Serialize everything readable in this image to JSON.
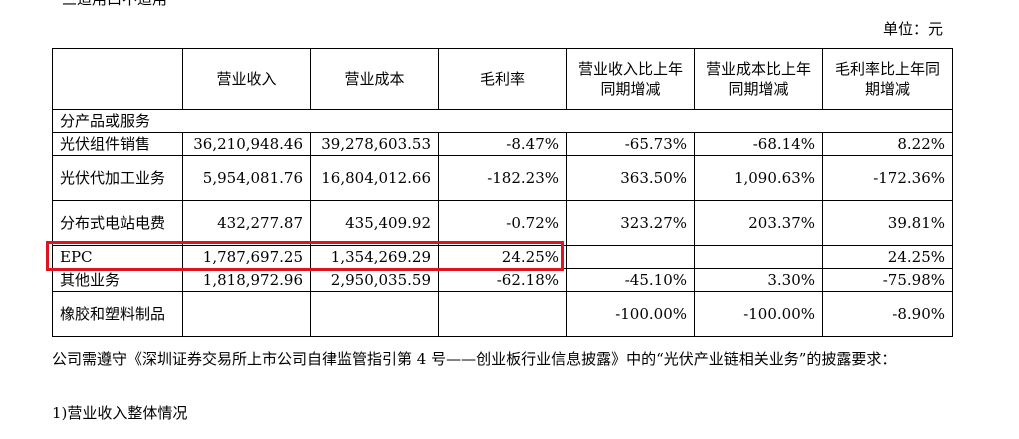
{
  "header_cut": "三适用口不适用",
  "unit_label": "单位：元",
  "table": {
    "columns": [
      "",
      "营业收入",
      "营业成本",
      "毛利率",
      "营业收入比上年同期增减",
      "营业成本比上年同期增减",
      "毛利率比上年同期增减"
    ],
    "section": "分产品或服务",
    "rows": [
      {
        "name": "光伏组件销售",
        "revenue": "36,210,948.46",
        "cost": "39,278,603.53",
        "margin": "-8.47%",
        "rev_chg": "-65.73%",
        "cost_chg": "-68.14%",
        "margin_chg": "8.22%"
      },
      {
        "name": "光伏代加工业务",
        "revenue": "5,954,081.76",
        "cost": "16,804,012.66",
        "margin": "-182.23%",
        "rev_chg": "363.50%",
        "cost_chg": "1,090.63%",
        "margin_chg": "-172.36%"
      },
      {
        "name": "分布式电站电费",
        "revenue": "432,277.87",
        "cost": "435,409.92",
        "margin": "-0.72%",
        "rev_chg": "323.27%",
        "cost_chg": "203.37%",
        "margin_chg": "39.81%"
      },
      {
        "name": "EPC",
        "revenue": "1,787,697.25",
        "cost": "1,354,269.29",
        "margin": "24.25%",
        "rev_chg": "",
        "cost_chg": "",
        "margin_chg": "24.25%"
      },
      {
        "name": "其他业务",
        "revenue": "1,818,972.96",
        "cost": "2,950,035.59",
        "margin": "-62.18%",
        "rev_chg": "-45.10%",
        "cost_chg": "3.30%",
        "margin_chg": "-75.98%"
      },
      {
        "name": "橡胶和塑料制品",
        "revenue": "",
        "cost": "",
        "margin": "",
        "rev_chg": "-100.00%",
        "cost_chg": "-100.00%",
        "margin_chg": "-8.90%"
      }
    ]
  },
  "paragraph": "公司需遵守《深圳证券交易所上市公司自律监管指引第 4 号——创业板行业信息披露》中的“光伏产业链相关业务”的披露要求：",
  "subheading": "1)营业收入整体情况"
}
